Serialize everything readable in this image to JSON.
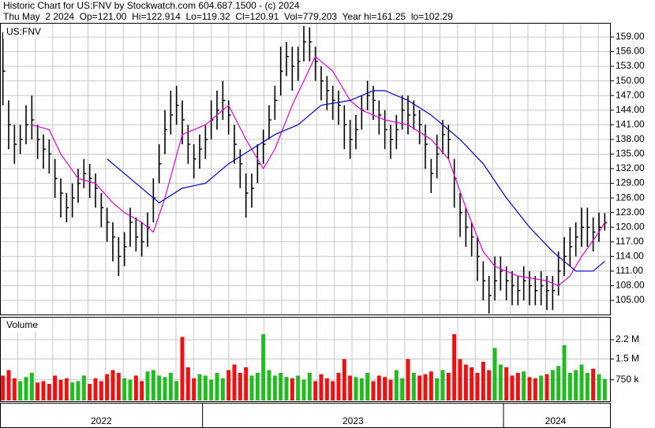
{
  "chart_data": {
    "type": "ohlc",
    "title": "Historic Chart for US:FNV by Stockwatch.com 604.687.1500 - (c) 2024",
    "subtitle": "Thu May  2 2024  Op=121.00  Hi=122.914  Lo=119.32  Cl=120.91  Vol=779,203  Year hi=161.25  lo=102.29",
    "symbol_label": "US:FNV",
    "volume_label": "Volume",
    "high": [
      160,
      146,
      141,
      141,
      145,
      147,
      141,
      139,
      138,
      134,
      130,
      127,
      129,
      132,
      134,
      133,
      131,
      127,
      124,
      121,
      118,
      119,
      124,
      122,
      121,
      123,
      130,
      137,
      144,
      148,
      149,
      146,
      141,
      137,
      139,
      141,
      146,
      148,
      150,
      146,
      141,
      136,
      131,
      131,
      137,
      140,
      145,
      149,
      157,
      158,
      157,
      157,
      161.25,
      161,
      157,
      153,
      151,
      149,
      148,
      145,
      142,
      143,
      147,
      150,
      149,
      146,
      144,
      141,
      143,
      147,
      147,
      146,
      144,
      141,
      134,
      139,
      142,
      141,
      134,
      127,
      124,
      121,
      118,
      113,
      110,
      114,
      114,
      112,
      111,
      110,
      112,
      111,
      110,
      111,
      110,
      110,
      115,
      118,
      120,
      121,
      124,
      124,
      122,
      123,
      122.914
    ],
    "low": [
      145,
      136,
      133,
      135,
      137,
      138,
      134,
      132,
      131,
      126,
      122,
      121,
      122,
      125,
      128,
      126,
      124,
      120,
      117,
      113,
      110,
      112,
      116,
      115,
      114,
      116,
      121,
      129,
      135,
      139,
      141,
      137,
      133,
      130,
      132,
      134,
      138,
      140,
      142,
      139,
      133,
      128,
      122,
      124,
      129,
      133,
      138,
      142,
      147,
      151,
      148,
      150,
      154,
      154,
      150,
      146,
      144,
      142,
      141,
      136,
      134,
      136,
      140,
      144,
      142,
      139,
      136,
      134,
      136,
      140,
      139,
      140,
      137,
      132,
      127,
      130,
      135,
      134,
      124,
      118,
      116,
      114,
      109,
      105,
      102.29,
      105,
      107,
      105,
      104,
      104,
      105,
      104,
      104,
      104,
      103,
      103,
      106,
      110,
      112,
      114,
      116,
      116,
      115,
      117,
      119.32
    ],
    "close": [
      152,
      141,
      137,
      138,
      141,
      142,
      138,
      136,
      135,
      130,
      127,
      124,
      126,
      129,
      131,
      130,
      128,
      124,
      121,
      118,
      114,
      116,
      121,
      118,
      117,
      120,
      126,
      133,
      140,
      143,
      145,
      142,
      137,
      134,
      136,
      138,
      142,
      144,
      146,
      143,
      137,
      133,
      127,
      128,
      133,
      137,
      142,
      146,
      152,
      155,
      153,
      154,
      158,
      158,
      154,
      150,
      148,
      146,
      145,
      141,
      138,
      140,
      144,
      147,
      146,
      143,
      140,
      138,
      140,
      144,
      143,
      143,
      141,
      137,
      131,
      135,
      139,
      138,
      130,
      123,
      120,
      118,
      114,
      109,
      106,
      109,
      111,
      109,
      108,
      107,
      109,
      108,
      107,
      108,
      107,
      107,
      111,
      114,
      116,
      118,
      120,
      120,
      119,
      120,
      120.91
    ],
    "volume": [
      900000,
      1100000,
      800000,
      700000,
      850000,
      1000000,
      650000,
      700000,
      600000,
      900000,
      750000,
      800000,
      650000,
      700000,
      900000,
      600000,
      800000,
      700000,
      950000,
      1100000,
      1000000,
      800000,
      750000,
      900000,
      700000,
      1050000,
      1100000,
      900000,
      850000,
      1000000,
      700000,
      2300000,
      1200000,
      800000,
      950000,
      900000,
      750000,
      1000000,
      800000,
      1100000,
      1300000,
      1000000,
      1200000,
      900000,
      1000000,
      2400000,
      1100000,
      900000,
      1000000,
      850000,
      800000,
      900000,
      750000,
      1000000,
      700000,
      950000,
      800000,
      700000,
      1000000,
      1500000,
      900000,
      850000,
      800000,
      1000000,
      700000,
      900000,
      850000,
      750000,
      1100000,
      800000,
      1500000,
      1000000,
      900000,
      950000,
      1050000,
      800000,
      1100000,
      1000000,
      2400000,
      1500000,
      1300000,
      1200000,
      1000000,
      1400000,
      1100000,
      1900000,
      1300000,
      1200000,
      900000,
      1000000,
      1050000,
      850000,
      800000,
      900000,
      950000,
      1100000,
      1250000,
      2000000,
      1000000,
      1100000,
      1300000,
      1000000,
      1150000,
      950000,
      779203
    ],
    "bar_color": "#000000",
    "up_color": "#22bb22",
    "down_color": "#ee1111",
    "ma_series": [
      {
        "color": "#e000e0",
        "x": [
          5,
          8,
          10,
          13,
          16,
          19,
          21,
          24,
          26,
          28,
          31,
          35,
          39,
          42,
          45,
          47,
          50,
          54,
          57,
          60,
          62,
          66,
          70,
          74,
          77,
          80,
          83,
          85,
          89,
          94,
          96,
          98,
          100,
          103,
          104
        ],
        "values": [
          141,
          140,
          135,
          130,
          129,
          125,
          123,
          121,
          119,
          126,
          139,
          141,
          145,
          138,
          132,
          136,
          145,
          155,
          152,
          146,
          144,
          142,
          141,
          138,
          134,
          124,
          115,
          112,
          110,
          109,
          108,
          110,
          114,
          119,
          121
        ]
      },
      {
        "color": "#0000cc",
        "x": [
          18,
          21,
          25,
          27,
          31,
          35,
          39,
          43,
          47,
          51,
          55,
          60,
          64,
          66,
          70,
          74,
          79,
          83,
          87,
          91,
          95,
          99,
          102,
          104
        ],
        "values": [
          134,
          131,
          127,
          125,
          128,
          129,
          133,
          136,
          139,
          141,
          145,
          146,
          148,
          148,
          146,
          143,
          138,
          133,
          126,
          120,
          115,
          111,
          111,
          113
        ]
      }
    ],
    "ylim": [
      102.1,
      161.9
    ],
    "yticks": [
      {
        "value": 105,
        "label": "105.00"
      },
      {
        "value": 108,
        "label": "108.00"
      },
      {
        "value": 111,
        "label": "111.00"
      },
      {
        "value": 114,
        "label": "114.00"
      },
      {
        "value": 117,
        "label": "117.00"
      },
      {
        "value": 120,
        "label": "120.00"
      },
      {
        "value": 123,
        "label": "123.00"
      },
      {
        "value": 126,
        "label": "126.00"
      },
      {
        "value": 129,
        "label": "129.00"
      },
      {
        "value": 132,
        "label": "132.00"
      },
      {
        "value": 135,
        "label": "135.00"
      },
      {
        "value": 138,
        "label": "138.00"
      },
      {
        "value": 141,
        "label": "141.00"
      },
      {
        "value": 144,
        "label": "144.00"
      },
      {
        "value": 147,
        "label": "147.00"
      },
      {
        "value": 150,
        "label": "150.00"
      },
      {
        "value": 153,
        "label": "153.00"
      },
      {
        "value": 156,
        "label": "156.00"
      },
      {
        "value": 159,
        "label": "159.00"
      }
    ],
    "volume_ylim": [
      0,
      3000000
    ],
    "volume_yticks": [
      {
        "value": 750000,
        "label": "750 k"
      },
      {
        "value": 1500000,
        "label": "1.5 M"
      },
      {
        "value": 2200000,
        "label": "2.2 M"
      }
    ],
    "years": [
      "2022",
      "2023",
      "2024"
    ],
    "year_starts": [
      35,
      87
    ],
    "grid": true
  }
}
